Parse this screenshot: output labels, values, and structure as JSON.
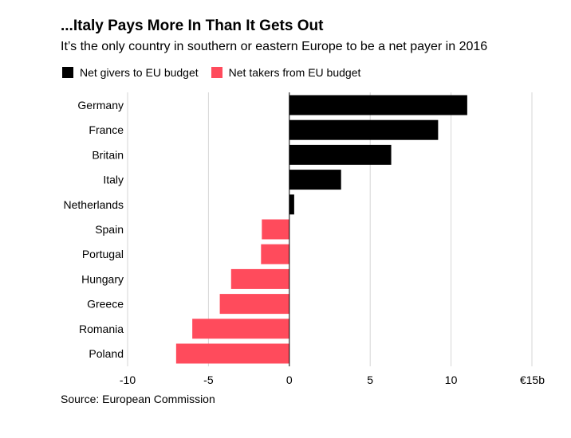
{
  "title": "...Italy Pays More In Than It Gets Out",
  "subtitle": "It’s the only country in southern or eastern Europe to be a net payer in 2016",
  "source": "Source: European Commission",
  "legend": [
    {
      "label": "Net givers to EU budget",
      "color": "#000000"
    },
    {
      "label": "Net takers from EU budget",
      "color": "#ff4b5c"
    }
  ],
  "chart_data": {
    "type": "bar",
    "orientation": "horizontal",
    "categories": [
      "Germany",
      "France",
      "Britain",
      "Italy",
      "Netherlands",
      "Spain",
      "Portugal",
      "Hungary",
      "Greece",
      "Romania",
      "Poland"
    ],
    "values": [
      11.0,
      9.2,
      6.3,
      3.2,
      0.3,
      -1.7,
      -1.75,
      -3.6,
      -4.3,
      -6.0,
      -7.0
    ],
    "xlim": [
      -10,
      15
    ],
    "xticks": [
      -10,
      -5,
      0,
      5,
      10,
      15
    ],
    "xtick_labels": [
      "-10",
      "-5",
      "0",
      "5",
      "10",
      "€15b"
    ],
    "positive_color": "#000000",
    "negative_color": "#ff4b5c",
    "grid": true,
    "legend_position": "top-left"
  }
}
